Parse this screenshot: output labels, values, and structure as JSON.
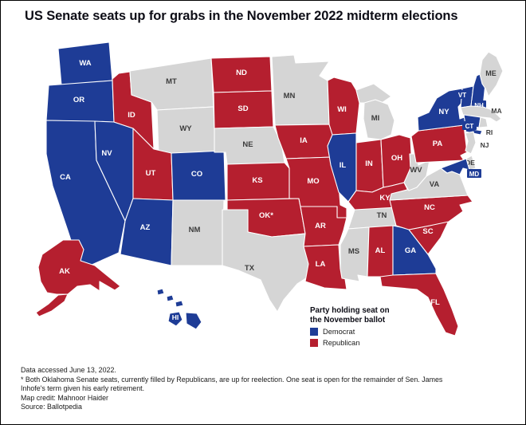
{
  "title": "US Senate seats up for grabs in the November 2022 midterm elections",
  "colors": {
    "democrat": "#1e3c96",
    "republican": "#b51f2f",
    "no_election": "#d5d5d5",
    "state_border": "#ffffff",
    "label_on_color": "#ffffff",
    "label_on_gray": "#3c3c3c"
  },
  "legend": {
    "title": "Party holding seat on the November ballot",
    "items": [
      {
        "label": "Democrat",
        "party": "democrat"
      },
      {
        "label": "Republican",
        "party": "republican"
      }
    ]
  },
  "map": {
    "states": [
      {
        "abbr": "WA",
        "label": "WA",
        "party": "democrat"
      },
      {
        "abbr": "OR",
        "label": "OR",
        "party": "democrat"
      },
      {
        "abbr": "CA",
        "label": "CA",
        "party": "democrat"
      },
      {
        "abbr": "NV",
        "label": "NV",
        "party": "democrat"
      },
      {
        "abbr": "ID",
        "label": "ID",
        "party": "republican"
      },
      {
        "abbr": "MT",
        "label": "MT",
        "party": "no_election"
      },
      {
        "abbr": "WY",
        "label": "WY",
        "party": "no_election"
      },
      {
        "abbr": "UT",
        "label": "UT",
        "party": "republican"
      },
      {
        "abbr": "AZ",
        "label": "AZ",
        "party": "democrat"
      },
      {
        "abbr": "CO",
        "label": "CO",
        "party": "democrat"
      },
      {
        "abbr": "NM",
        "label": "NM",
        "party": "no_election"
      },
      {
        "abbr": "ND",
        "label": "ND",
        "party": "republican"
      },
      {
        "abbr": "SD",
        "label": "SD",
        "party": "republican"
      },
      {
        "abbr": "NE",
        "label": "NE",
        "party": "no_election"
      },
      {
        "abbr": "KS",
        "label": "KS",
        "party": "republican"
      },
      {
        "abbr": "OK",
        "label": "OK*",
        "party": "republican"
      },
      {
        "abbr": "TX",
        "label": "TX",
        "party": "no_election"
      },
      {
        "abbr": "MN",
        "label": "MN",
        "party": "no_election"
      },
      {
        "abbr": "IA",
        "label": "IA",
        "party": "republican"
      },
      {
        "abbr": "MO",
        "label": "MO",
        "party": "republican"
      },
      {
        "abbr": "AR",
        "label": "AR",
        "party": "republican"
      },
      {
        "abbr": "LA",
        "label": "LA",
        "party": "republican"
      },
      {
        "abbr": "WI",
        "label": "WI",
        "party": "republican"
      },
      {
        "abbr": "IL",
        "label": "IL",
        "party": "democrat"
      },
      {
        "abbr": "IN",
        "label": "IN",
        "party": "republican"
      },
      {
        "abbr": "OH",
        "label": "OH",
        "party": "republican"
      },
      {
        "abbr": "MI",
        "label": "MI",
        "party": "no_election"
      },
      {
        "abbr": "KY",
        "label": "KY",
        "party": "republican"
      },
      {
        "abbr": "TN",
        "label": "TN",
        "party": "no_election"
      },
      {
        "abbr": "MS",
        "label": "MS",
        "party": "no_election"
      },
      {
        "abbr": "AL",
        "label": "AL",
        "party": "republican"
      },
      {
        "abbr": "GA",
        "label": "GA",
        "party": "democrat"
      },
      {
        "abbr": "FL",
        "label": "FL",
        "party": "republican"
      },
      {
        "abbr": "SC",
        "label": "SC",
        "party": "republican"
      },
      {
        "abbr": "NC",
        "label": "NC",
        "party": "republican"
      },
      {
        "abbr": "VA",
        "label": "VA",
        "party": "no_election"
      },
      {
        "abbr": "WV",
        "label": "WV",
        "party": "no_election"
      },
      {
        "abbr": "PA",
        "label": "PA",
        "party": "republican"
      },
      {
        "abbr": "NY",
        "label": "NY",
        "party": "democrat"
      },
      {
        "abbr": "VT",
        "label": "VT",
        "party": "democrat"
      },
      {
        "abbr": "NH",
        "label": "NH",
        "party": "democrat"
      },
      {
        "abbr": "ME",
        "label": "ME",
        "party": "no_election"
      },
      {
        "abbr": "MA",
        "label": "MA",
        "party": "no_election"
      },
      {
        "abbr": "CT",
        "label": "CT",
        "party": "democrat"
      },
      {
        "abbr": "RI",
        "label": "RI",
        "party": "no_election"
      },
      {
        "abbr": "NJ",
        "label": "NJ",
        "party": "no_election"
      },
      {
        "abbr": "DE",
        "label": "DE",
        "party": "no_election"
      },
      {
        "abbr": "MD",
        "label": "MD",
        "party": "democrat"
      },
      {
        "abbr": "AK",
        "label": "AK",
        "party": "republican"
      },
      {
        "abbr": "HI",
        "label": "HI",
        "party": "democrat"
      }
    ]
  },
  "footer": {
    "line1": "Data accessed June 13, 2022.",
    "note": "* Both Oklahoma Senate seats, currently filled by Republicans, are up for reelection. One seat is open for the remainder of Sen. James Inhofe's term given his early retirement.",
    "credit": "Map credit: Mahnoor Haider",
    "source": "Source: Ballotpedia"
  }
}
